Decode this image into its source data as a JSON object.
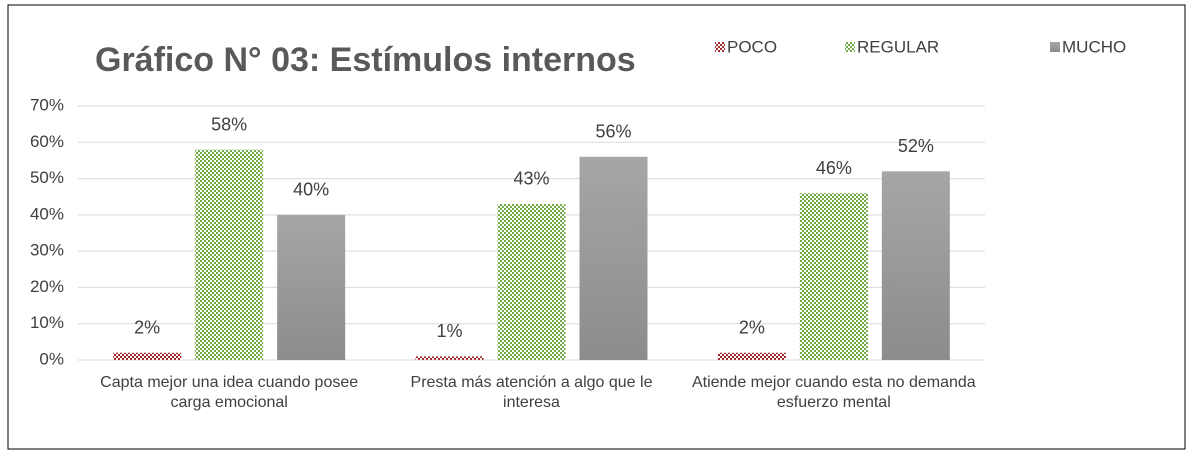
{
  "chart_data": {
    "type": "bar",
    "title": "Gráfico N° 03: Estímulos internos",
    "categories": [
      "Capta mejor una idea cuando posee carga emocional",
      "Presta más atención a algo que le interesa",
      "Atiende mejor cuando esta no demanda esfuerzo mental"
    ],
    "series": [
      {
        "name": "POCO",
        "color": "#a52a2a",
        "values": [
          2,
          1,
          2
        ],
        "value_labels": [
          "2%",
          "1%",
          "2%"
        ]
      },
      {
        "name": "REGULAR",
        "color": "#70ad47",
        "values": [
          58,
          43,
          46
        ],
        "value_labels": [
          "58%",
          "43%",
          "46%"
        ]
      },
      {
        "name": "MUCHO",
        "color": "#a6a6a6",
        "values": [
          40,
          56,
          52
        ],
        "value_labels": [
          "40%",
          "56%",
          "52%"
        ]
      }
    ],
    "ylim": [
      0,
      70
    ],
    "yticks": [
      {
        "value": 0,
        "label": "0%"
      },
      {
        "value": 10,
        "label": "10%"
      },
      {
        "value": 20,
        "label": "20%"
      },
      {
        "value": 30,
        "label": "30%"
      },
      {
        "value": 40,
        "label": "40%"
      },
      {
        "value": 50,
        "label": "50%"
      },
      {
        "value": 60,
        "label": "60%"
      },
      {
        "value": 70,
        "label": "70%"
      }
    ],
    "grid": true,
    "legend": "top-right"
  }
}
